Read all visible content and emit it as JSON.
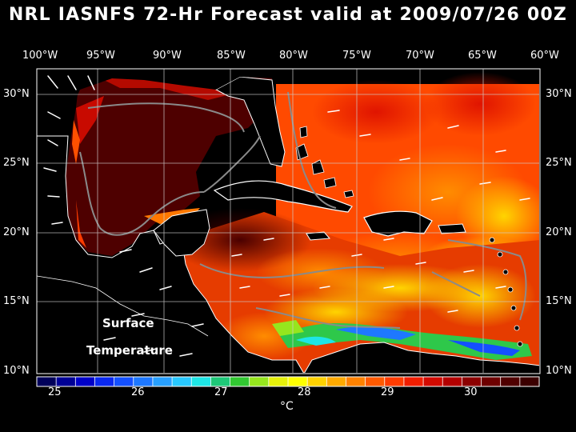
{
  "title": "NRL IASNFS  72-Hr Forecast valid at 2009/07/26 00Z",
  "lon_labels": [
    "100°W",
    "95°W",
    "90°W",
    "85°W",
    "80°W",
    "75°W",
    "70°W",
    "65°W",
    "60°W"
  ],
  "lat_labels": [
    "30°N",
    "25°N",
    "20°N",
    "15°N",
    "10°N"
  ],
  "panel_label": {
    "line1": "Surface",
    "line2": "Temperature"
  },
  "colorbar": {
    "tick_labels": [
      "25",
      "26",
      "27",
      "28",
      "29",
      "30"
    ],
    "unit": "°C",
    "colors": [
      "#00005a",
      "#000096",
      "#0000c8",
      "#0a28f0",
      "#1450ff",
      "#1e78ff",
      "#28a0ff",
      "#28c8ff",
      "#1ee6e6",
      "#1ec878",
      "#32c832",
      "#96e61e",
      "#e6f00a",
      "#ffff00",
      "#ffd200",
      "#ffaa00",
      "#ff8200",
      "#ff5a00",
      "#ff3c00",
      "#f01e00",
      "#d20a00",
      "#b40000",
      "#8c0000",
      "#6e0000",
      "#500000",
      "#3c0000"
    ]
  },
  "chart_data": {
    "type": "heatmap",
    "title": "NRL IASNFS  72-Hr Forecast valid at 2009/07/26 00Z",
    "variable": "Surface Temperature",
    "unit": "°C",
    "color_range": [
      24.8,
      30.8
    ],
    "lon_range": [
      -100,
      -60
    ],
    "lat_range": [
      10,
      31
    ],
    "grid": true
  }
}
